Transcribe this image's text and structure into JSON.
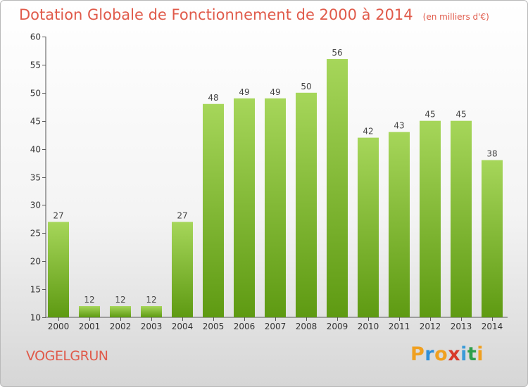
{
  "chart_data": {
    "type": "bar",
    "title": "Dotation Globale de Fonctionnement de 2000 à 2014",
    "subtitle": "(en milliers d'€)",
    "categories": [
      "2000",
      "2001",
      "2002",
      "2003",
      "2004",
      "2005",
      "2006",
      "2007",
      "2008",
      "2009",
      "2010",
      "2011",
      "2012",
      "2013",
      "2014"
    ],
    "values": [
      27,
      12,
      12,
      12,
      27,
      48,
      49,
      49,
      50,
      56,
      42,
      43,
      45,
      45,
      38
    ],
    "ylim": [
      10,
      60
    ],
    "yticks": [
      10,
      15,
      20,
      25,
      30,
      35,
      40,
      45,
      50,
      55,
      60
    ],
    "grid": false,
    "bar_color_top": "#a6d65a",
    "bar_color_bottom": "#5e9a12"
  },
  "commune": "VOGELGRUN",
  "logo": {
    "letters": [
      "P",
      "r",
      "o",
      "x",
      "i",
      "t",
      "i"
    ],
    "colors": [
      "#f0a020",
      "#2f8fd8",
      "#f0a020",
      "#d83a2a",
      "#3a9bd8",
      "#2e9f4c",
      "#f0a020"
    ]
  }
}
